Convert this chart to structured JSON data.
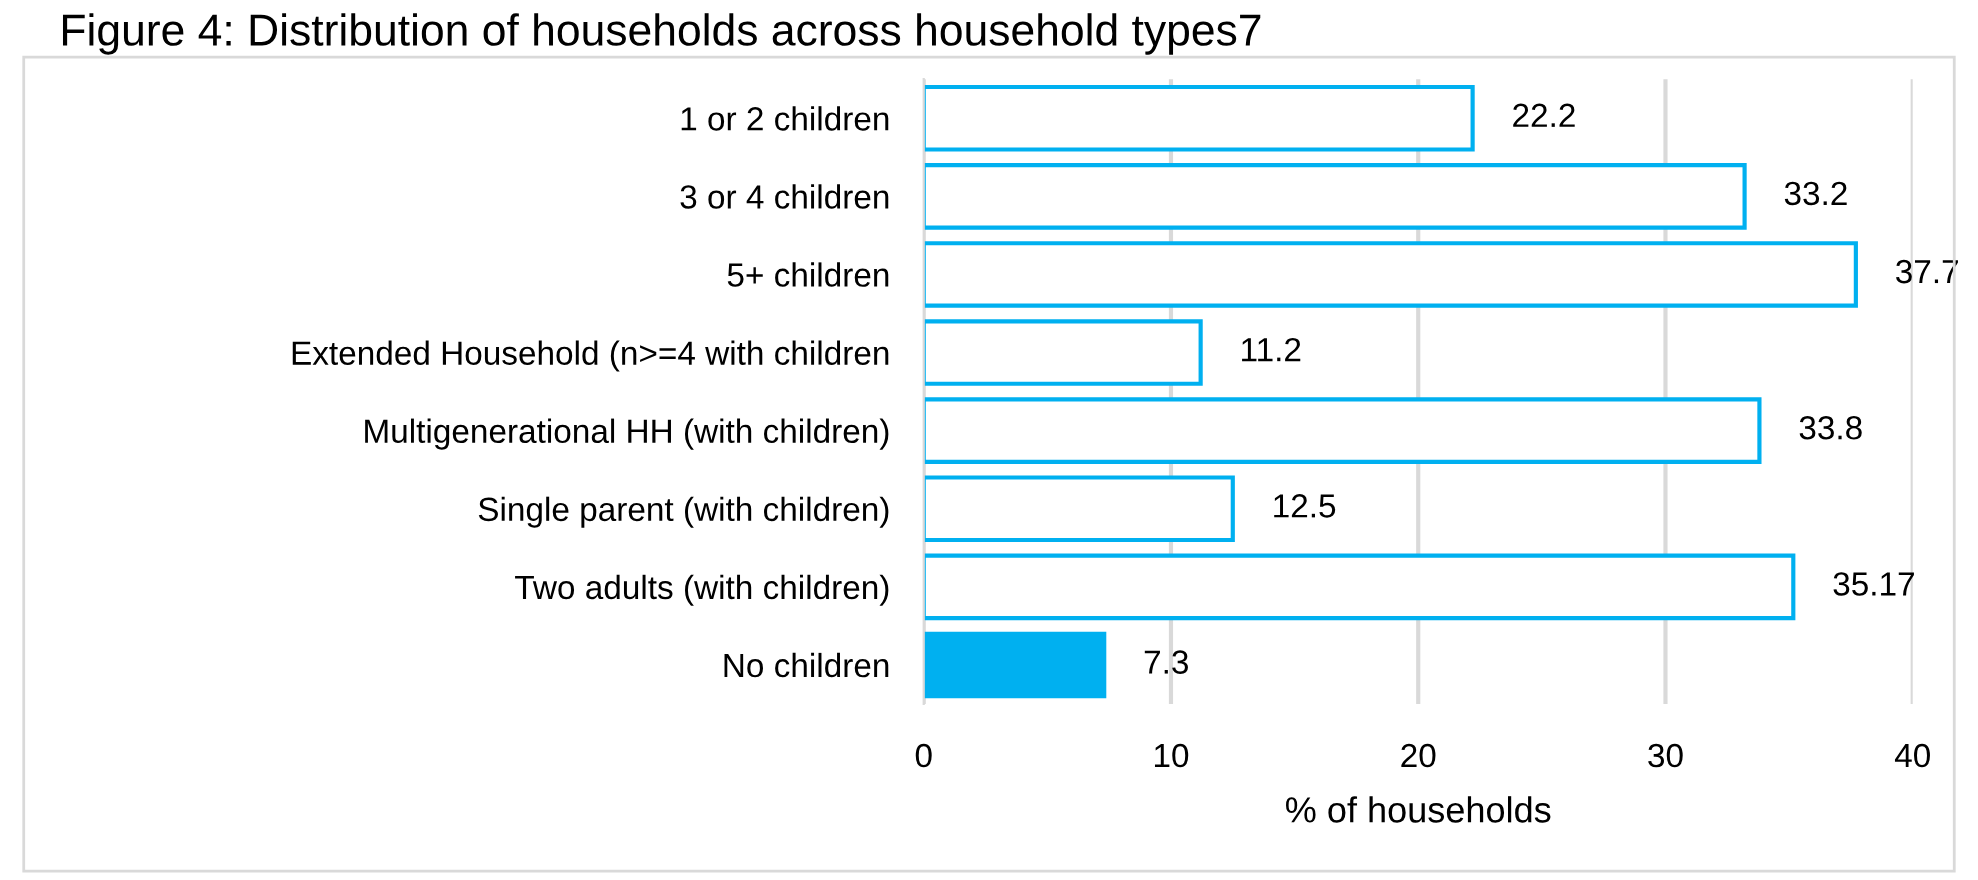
{
  "chart_data": {
    "type": "bar",
    "orientation": "horizontal",
    "title": "Figure 4: Distribution of households across household types7",
    "xlabel": "% of households",
    "categories": [
      "1 or 2 children",
      "3 or 4 children",
      "5+ children",
      "Extended Household (n>=4 with children",
      "Multigenerational HH (with children)",
      "Single parent (with children)",
      "Two adults (with children)",
      "No children"
    ],
    "values": [
      22.2,
      33.2,
      37.7,
      11.2,
      33.8,
      12.5,
      35.17,
      7.3
    ],
    "color": "#00b0f0",
    "colors": [
      "#ffffff",
      "#ffffff",
      "#ffffff",
      "#ffffff",
      "#ffffff",
      "#ffffff",
      "#ffffff",
      "#00b0f0"
    ],
    "xlim": [
      0,
      40
    ],
    "xticks": [
      0,
      10,
      20,
      30,
      40
    ],
    "grid": "x",
    "data_labels": true
  }
}
